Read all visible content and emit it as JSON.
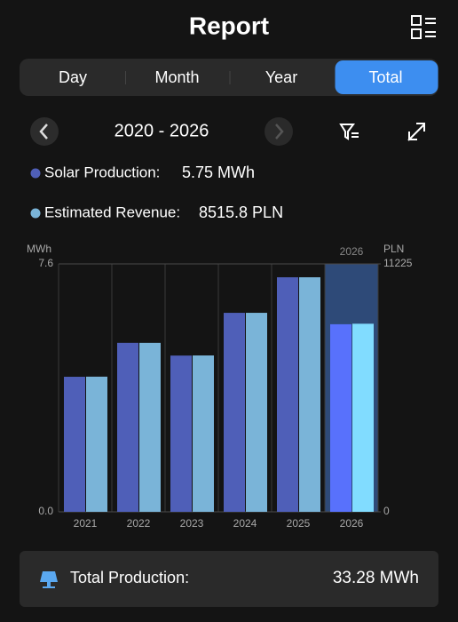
{
  "header": {
    "title": "Report"
  },
  "tabs": [
    "Day",
    "Month",
    "Year",
    "Total"
  ],
  "selected_tab": 3,
  "range": {
    "label": "2020 - 2026"
  },
  "summary": [
    {
      "label": "Solar Production:",
      "value": "5.75 MWh"
    },
    {
      "label": "Estimated Revenue:",
      "value": "8515.8 PLN"
    }
  ],
  "chart_data": {
    "type": "bar",
    "categories": [
      "2021",
      "2022",
      "2023",
      "2024",
      "2025",
      "2026"
    ],
    "selected_label": "2026",
    "y_label": "MWh",
    "y2_label": "PLN",
    "ylim": [
      0,
      7.6
    ],
    "yticks": [
      {
        "value": 0,
        "label": "0.0"
      },
      7.6
    ],
    "y2lim": [
      0,
      11225
    ],
    "y2ticks": [
      0,
      11225
    ],
    "series": [
      {
        "name": "Solar Production",
        "color": "#4f5fb8",
        "values": [
          4.14,
          5.18,
          4.79,
          6.1,
          7.19,
          5.75
        ]
      },
      {
        "name": "Estimated Revenue",
        "color": "#7ab4d8",
        "axis": "y2",
        "values": [
          6120,
          7650,
          7080,
          9010,
          10620,
          8515.8
        ]
      }
    ]
  },
  "footer": {
    "label": "Total Production:",
    "value": "33.28 MWh"
  }
}
